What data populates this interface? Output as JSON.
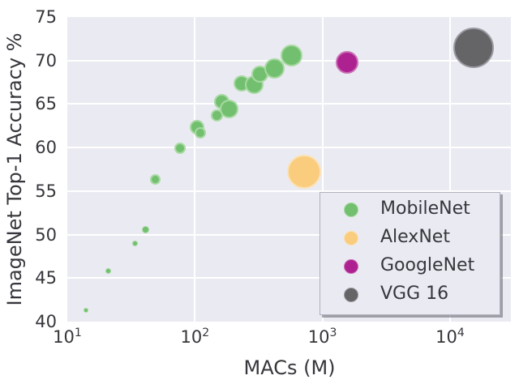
{
  "chart_data": {
    "type": "scatter",
    "xlabel": "MACs (M)",
    "ylabel": "ImageNet Top-1 Accuracy %",
    "x_scale": "log",
    "xlim": [
      10,
      30000
    ],
    "ylim": [
      40,
      75
    ],
    "grid": true,
    "legend_position": "lower right",
    "y_ticks": [
      40,
      45,
      50,
      55,
      60,
      65,
      70,
      75
    ],
    "x_ticks": [
      {
        "value": 10,
        "base": "10",
        "exp": "1"
      },
      {
        "value": 100,
        "base": "10",
        "exp": "2"
      },
      {
        "value": 1000,
        "base": "10",
        "exp": "3"
      },
      {
        "value": 10000,
        "base": "10",
        "exp": "4"
      }
    ],
    "series": [
      {
        "name": "MobileNet",
        "color": "#72c06f",
        "edge_color": "#a8d9a2",
        "points": [
          {
            "x": 14,
            "y": 41.3,
            "r": 3
          },
          {
            "x": 21,
            "y": 45.8,
            "r": 3.5
          },
          {
            "x": 34,
            "y": 49.0,
            "r": 3.5
          },
          {
            "x": 41,
            "y": 50.6,
            "r": 4.5
          },
          {
            "x": 49,
            "y": 56.3,
            "r": 6.5
          },
          {
            "x": 77,
            "y": 59.9,
            "r": 7
          },
          {
            "x": 104,
            "y": 62.3,
            "r": 9
          },
          {
            "x": 110,
            "y": 61.7,
            "r": 7
          },
          {
            "x": 149,
            "y": 63.7,
            "r": 7.5
          },
          {
            "x": 162,
            "y": 65.3,
            "r": 9.5
          },
          {
            "x": 186,
            "y": 64.4,
            "r": 11.5
          },
          {
            "x": 233,
            "y": 67.4,
            "r": 10
          },
          {
            "x": 290,
            "y": 67.2,
            "r": 11.5
          },
          {
            "x": 325,
            "y": 68.4,
            "r": 10.5
          },
          {
            "x": 418,
            "y": 69.1,
            "r": 12.5
          },
          {
            "x": 569,
            "y": 70.6,
            "r": 13.5
          }
        ]
      },
      {
        "name": "AlexNet",
        "color": "#f9cc7e",
        "edge_color": "#fbe2b3",
        "points": [
          {
            "x": 720,
            "y": 57.2,
            "r": 21
          }
        ]
      },
      {
        "name": "GoogleNet",
        "color": "#ae2191",
        "edge_color": "#c970b5",
        "points": [
          {
            "x": 1550,
            "y": 69.8,
            "r": 14
          }
        ]
      },
      {
        "name": "VGG 16",
        "color": "#656567",
        "edge_color": "#9a9aa0",
        "points": [
          {
            "x": 15300,
            "y": 71.5,
            "r": 25
          }
        ]
      }
    ]
  },
  "colors": {
    "plot_bg": "#eaeaf2",
    "grid": "#ffffff",
    "text": "#36363c",
    "legend_bg": "#eaeaf2",
    "legend_border": "#b2b2bf",
    "legend_shadow": "rgba(95,95,105,0.55)"
  }
}
